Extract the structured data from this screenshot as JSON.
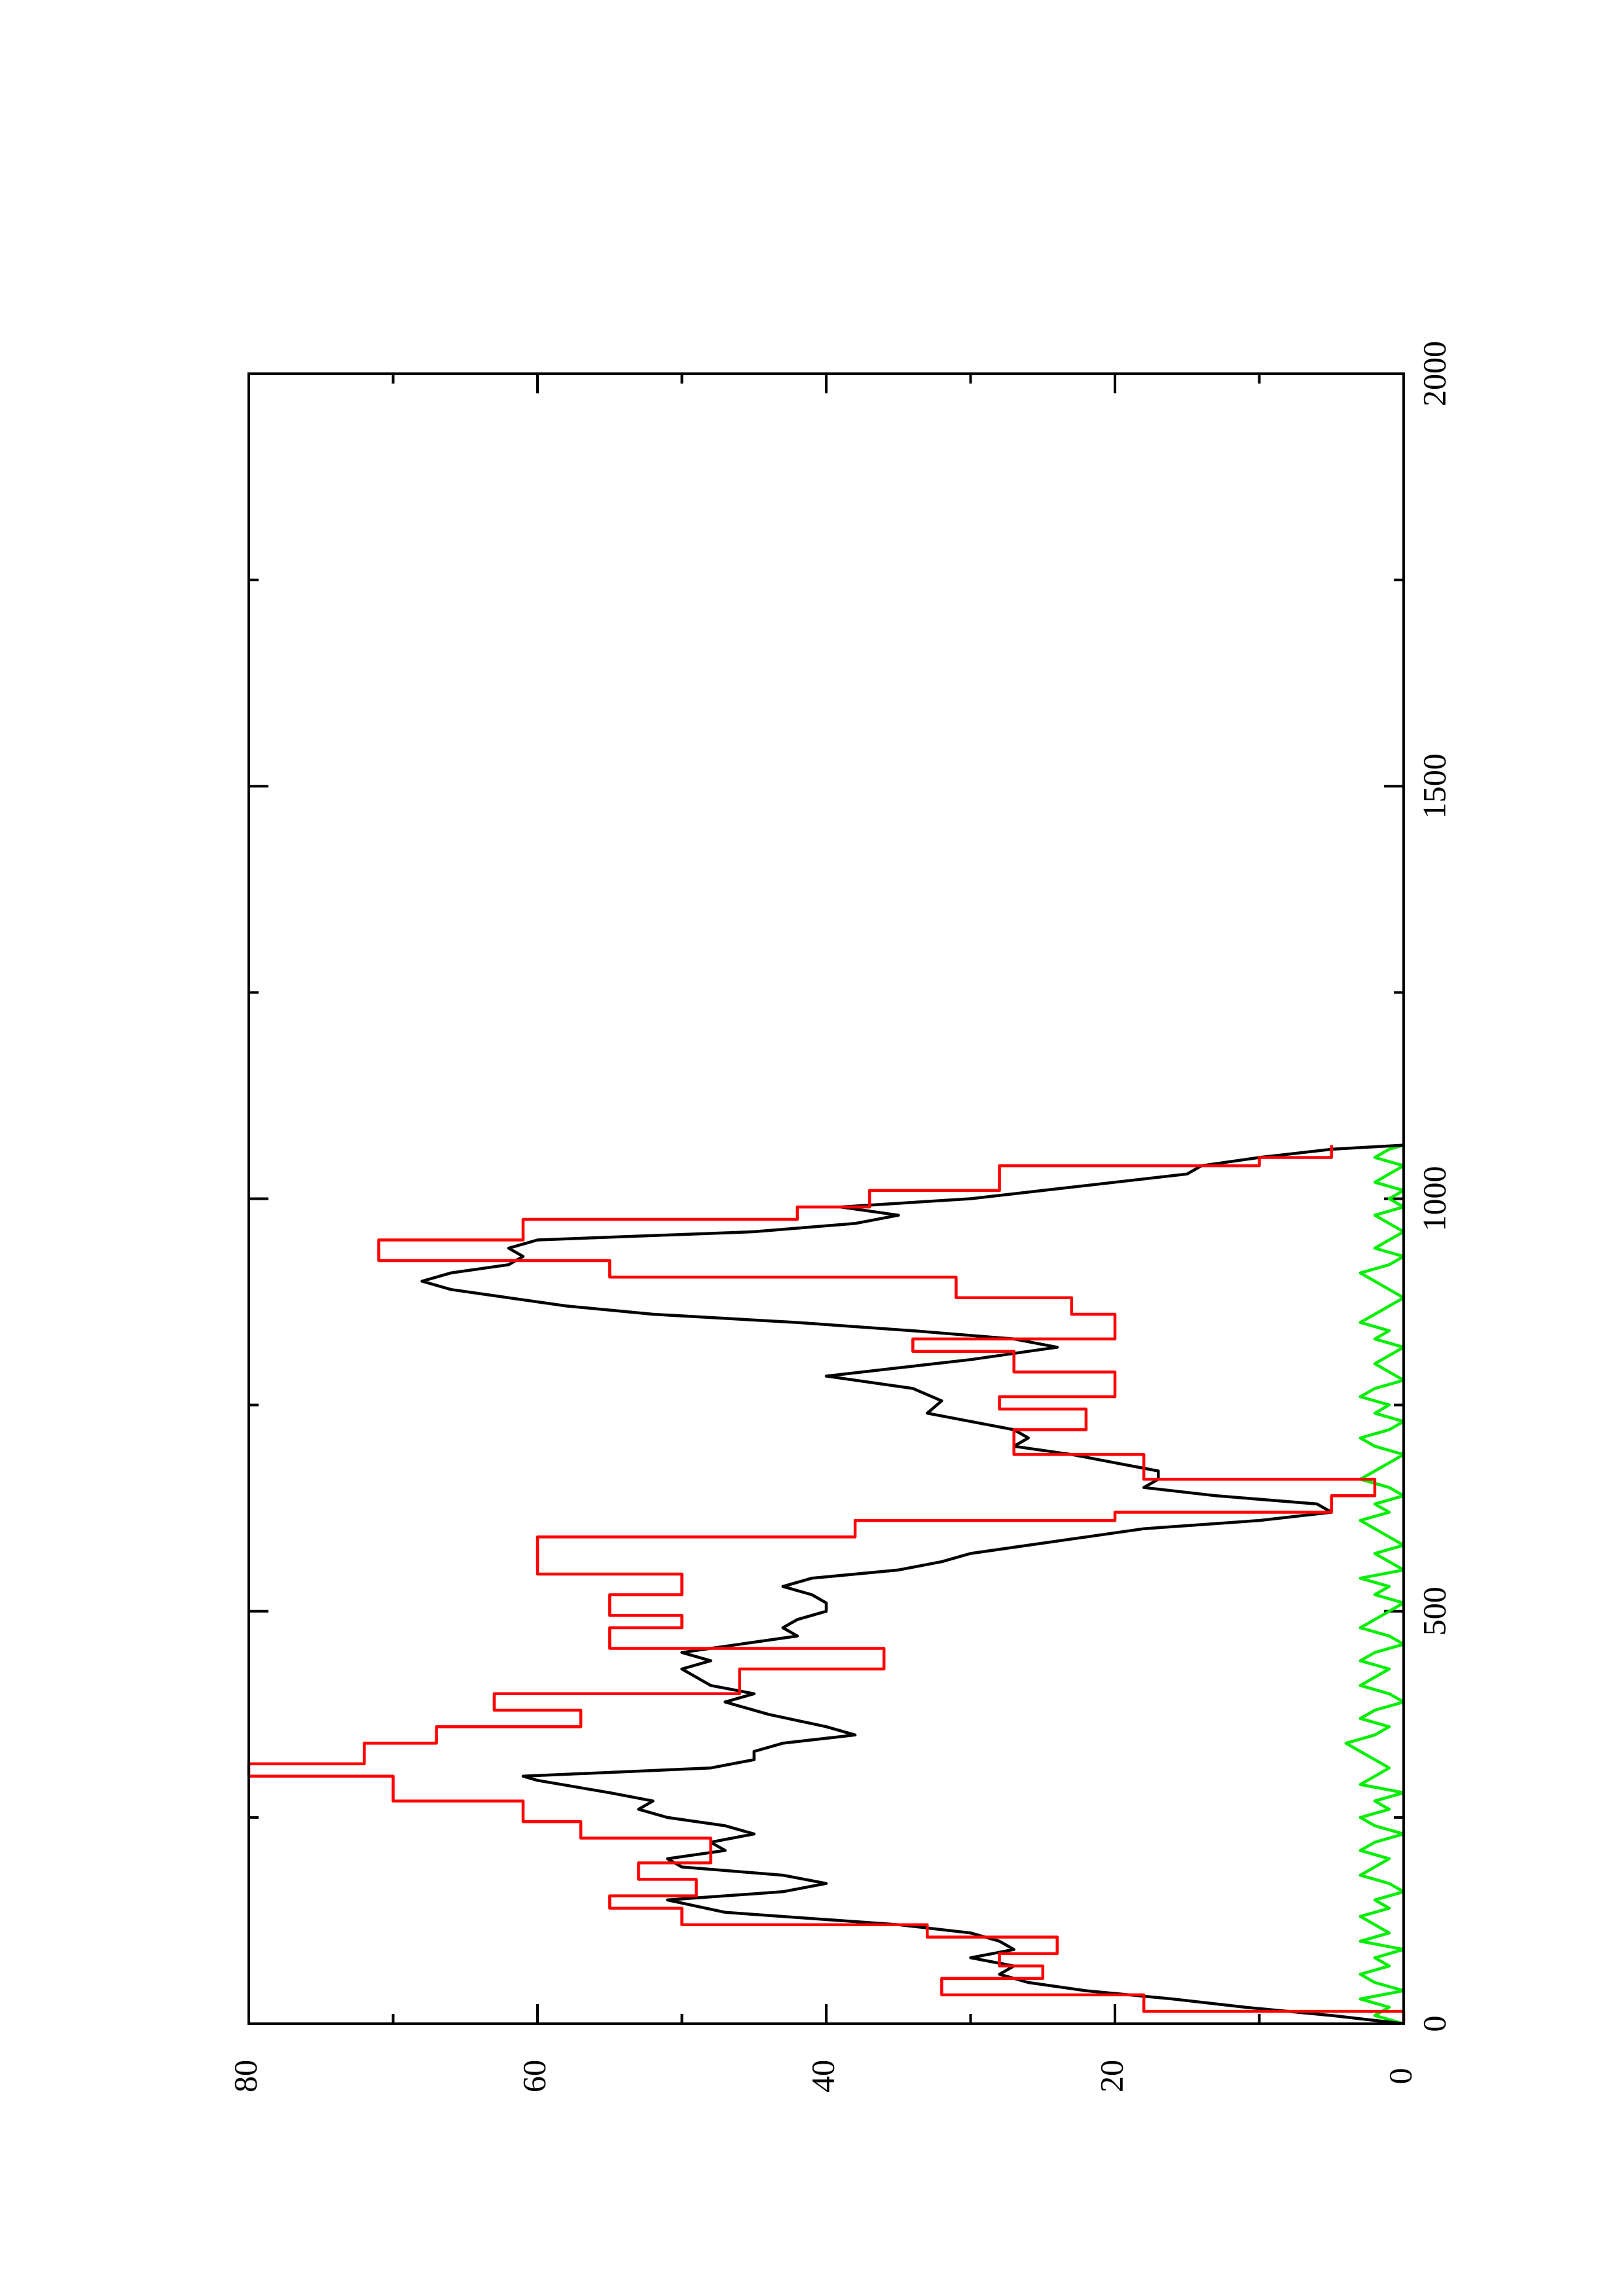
{
  "chart_data": {
    "type": "line",
    "orientation": "rotated 90 degrees counter-clockwise (x axis drawn vertically, y axis drawn horizontally)",
    "title": "",
    "xlabel": "",
    "ylabel": "",
    "xlim": [
      0,
      2000
    ],
    "ylim": [
      0,
      80
    ],
    "x_ticks": [
      0,
      500,
      1000,
      1500,
      2000
    ],
    "x_tick_labels": [
      "0",
      "500",
      "1000",
      "1500",
      "2000"
    ],
    "y_ticks": [
      0,
      20,
      40,
      60,
      80
    ],
    "y_tick_labels": [
      "0",
      "20",
      "40",
      "60",
      "80"
    ],
    "grid": false,
    "legend": "none",
    "series": [
      {
        "color": "#ff0000",
        "x": [
          0,
          15,
          15,
          35,
          35,
          55,
          55,
          70,
          70,
          85,
          85,
          105,
          105,
          120,
          120,
          140,
          140,
          155,
          155,
          175,
          175,
          195,
          195,
          225,
          225,
          245,
          245,
          270,
          270,
          300,
          300,
          315,
          315,
          340,
          340,
          360,
          360,
          380,
          380,
          400,
          400,
          430,
          430,
          455,
          455,
          480,
          480,
          495,
          495,
          520,
          520,
          545,
          545,
          590,
          590,
          610,
          610,
          620,
          620,
          640,
          640,
          660,
          660,
          690,
          690,
          720,
          720,
          745,
          745,
          760,
          760,
          790,
          790,
          815,
          815,
          830,
          830,
          860,
          860,
          880,
          880,
          905,
          905,
          925,
          925,
          950,
          950,
          975,
          975,
          990,
          990,
          1010,
          1010,
          1040,
          1040,
          1050,
          1050,
          1065
        ],
        "y": [
          0,
          0,
          18,
          18,
          32,
          32,
          25,
          25,
          28,
          28,
          24,
          24,
          33,
          33,
          50,
          50,
          55,
          55,
          49,
          49,
          53,
          53,
          48,
          48,
          57,
          57,
          61,
          61,
          70,
          70,
          80,
          80,
          72,
          72,
          67,
          67,
          57,
          57,
          63,
          63,
          46,
          46,
          36,
          36,
          55,
          55,
          50,
          50,
          55,
          55,
          50,
          50,
          60,
          60,
          38,
          38,
          20,
          20,
          5,
          5,
          2,
          2,
          18,
          18,
          27,
          27,
          22,
          22,
          28,
          28,
          20,
          20,
          27,
          27,
          34,
          34,
          20,
          20,
          23,
          23,
          31,
          31,
          55,
          55,
          71,
          71,
          61,
          61,
          42,
          42,
          37,
          37,
          28,
          28,
          10,
          10,
          5,
          5
        ]
      },
      {
        "color": "#000000",
        "x": [
          0,
          10,
          20,
          30,
          40,
          50,
          60,
          70,
          80,
          90,
          100,
          110,
          120,
          135,
          150,
          160,
          170,
          180,
          190,
          200,
          210,
          220,
          230,
          240,
          250,
          260,
          270,
          280,
          295,
          300,
          310,
          320,
          330,
          340,
          350,
          360,
          375,
          390,
          400,
          410,
          420,
          430,
          440,
          450,
          460,
          470,
          480,
          490,
          500,
          510,
          520,
          530,
          540,
          550,
          560,
          570,
          580,
          590,
          600,
          610,
          620,
          630,
          640,
          650,
          660,
          670,
          680,
          690,
          700,
          710,
          720,
          730,
          740,
          755,
          770,
          785,
          795,
          805,
          815,
          820,
          830,
          840,
          850,
          860,
          870,
          880,
          890,
          900,
          910,
          920,
          930,
          940,
          950,
          960,
          970,
          980,
          990,
          1000,
          1010,
          1020,
          1030,
          1040,
          1050,
          1060,
          1065
        ],
        "y": [
          0,
          5,
          11,
          16,
          22,
          26,
          28,
          27,
          30,
          27,
          28,
          30,
          35,
          47,
          51,
          43,
          40,
          43,
          50,
          51,
          47,
          48,
          45,
          47,
          51,
          53,
          52,
          55,
          60,
          61,
          48,
          45,
          45,
          43,
          38,
          40,
          44,
          47,
          45,
          48,
          49,
          50,
          48,
          50,
          46,
          42,
          43,
          42,
          40,
          40,
          41,
          43,
          41,
          35,
          32,
          30,
          26,
          22,
          18,
          10,
          5,
          6,
          13,
          18,
          17,
          17,
          20,
          23,
          27,
          26,
          27,
          30,
          33,
          32,
          34,
          40,
          35,
          30,
          26,
          24,
          27,
          34,
          42,
          52,
          58,
          62,
          66,
          68,
          66,
          62,
          61,
          62,
          60,
          45,
          38,
          35,
          39,
          30,
          25,
          20,
          15,
          14,
          10,
          5,
          0
        ]
      },
      {
        "color": "#00ee00",
        "x": [
          0,
          10,
          20,
          30,
          40,
          50,
          60,
          70,
          80,
          90,
          100,
          110,
          120,
          130,
          140,
          150,
          160,
          170,
          180,
          190,
          200,
          210,
          220,
          230,
          240,
          250,
          260,
          270,
          280,
          290,
          300,
          310,
          320,
          330,
          340,
          350,
          360,
          370,
          380,
          390,
          400,
          410,
          420,
          430,
          440,
          450,
          460,
          470,
          480,
          490,
          500,
          510,
          520,
          530,
          540,
          550,
          560,
          570,
          580,
          590,
          600,
          610,
          620,
          630,
          640,
          650,
          660,
          670,
          680,
          690,
          700,
          710,
          720,
          730,
          740,
          750,
          760,
          770,
          780,
          790,
          800,
          810,
          820,
          830,
          840,
          850,
          860,
          870,
          880,
          890,
          900,
          910,
          920,
          930,
          940,
          950,
          960,
          970,
          980,
          990,
          1000,
          1010,
          1020,
          1030,
          1040,
          1050,
          1060,
          1065
        ],
        "y": [
          0,
          2,
          1,
          3,
          0,
          2,
          3,
          1,
          2,
          0,
          3,
          1,
          2,
          3,
          1,
          2,
          0,
          1,
          3,
          2,
          1,
          3,
          2,
          0,
          2,
          3,
          1,
          2,
          0,
          3,
          2,
          1,
          2,
          3,
          4,
          2,
          1,
          3,
          2,
          0,
          1,
          3,
          2,
          1,
          3,
          2,
          0,
          1,
          3,
          2,
          1,
          0,
          2,
          1,
          3,
          0,
          1,
          2,
          0,
          1,
          2,
          3,
          1,
          2,
          0,
          1,
          3,
          2,
          1,
          0,
          2,
          3,
          1,
          0,
          2,
          1,
          3,
          2,
          0,
          1,
          2,
          1,
          0,
          2,
          1,
          3,
          2,
          1,
          0,
          1,
          2,
          3,
          1,
          0,
          2,
          1,
          0,
          1,
          2,
          0,
          1,
          0,
          2,
          1,
          0,
          2,
          1,
          0
        ]
      }
    ]
  }
}
